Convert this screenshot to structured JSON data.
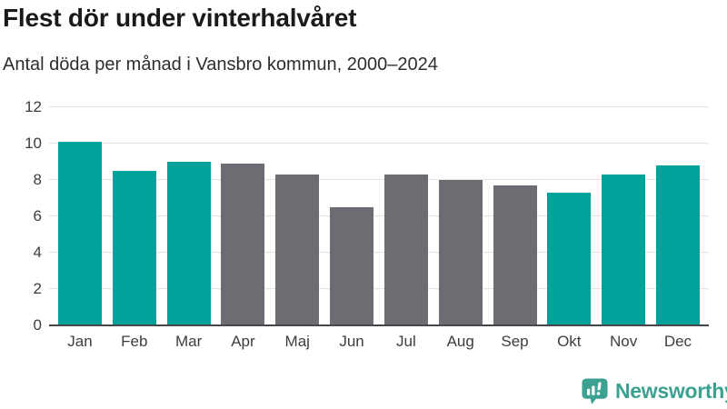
{
  "chart_data": {
    "type": "bar",
    "title": "Flest dör under vinterhalvåret",
    "subtitle": "Antal döda per månad i Vansbro kommun, 2000–2024",
    "categories": [
      "Jan",
      "Feb",
      "Mar",
      "Apr",
      "Maj",
      "Jun",
      "Jul",
      "Aug",
      "Sep",
      "Okt",
      "Nov",
      "Dec"
    ],
    "values": [
      10.1,
      8.5,
      9.0,
      8.9,
      8.3,
      6.5,
      8.3,
      8.0,
      7.7,
      7.3,
      8.3,
      8.8
    ],
    "xlabel": "",
    "ylabel": "",
    "ylim": [
      0,
      12
    ],
    "yticks": [
      0,
      2,
      4,
      6,
      8,
      10,
      12
    ],
    "grid": true,
    "legend": "none",
    "color_keys": [
      "winter",
      "winter",
      "winter",
      "summer",
      "summer",
      "summer",
      "summer",
      "summer",
      "summer",
      "winter",
      "winter",
      "winter"
    ],
    "colors": {
      "winter": "#00A29A",
      "summer": "#6C6C72"
    }
  },
  "branding": {
    "logo_text": "Newsworthy",
    "logo_color": "#3CA190",
    "logo_icon": "bar-chart-speech-bubble-icon"
  }
}
